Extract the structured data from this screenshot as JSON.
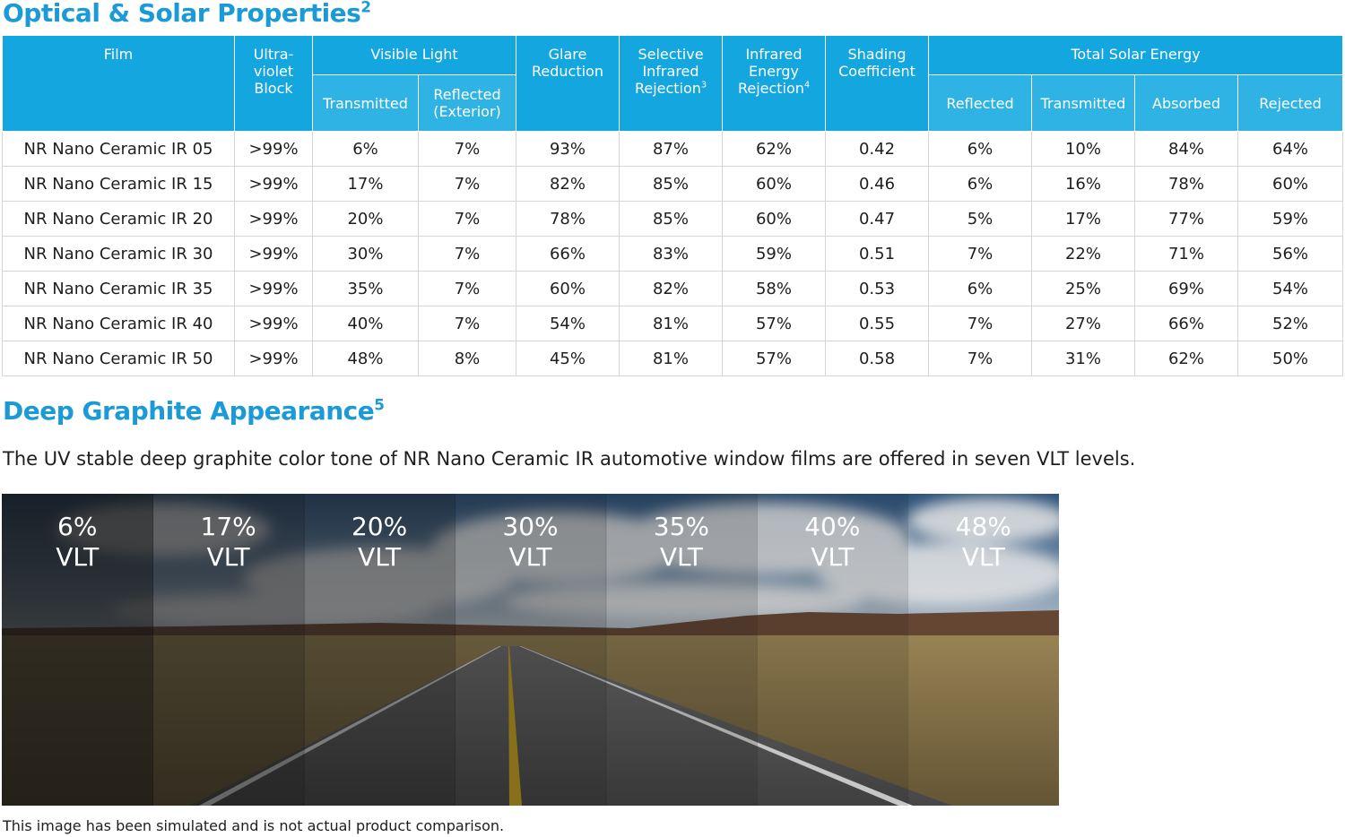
{
  "title": "Optical & Solar Properties",
  "title_note": "2",
  "table": {
    "header_top": [
      {
        "text": "Film"
      },
      {
        "text": "Ultra-violet Block"
      },
      {
        "text": "Visible Light"
      },
      {
        "text": "Glare Reduction"
      },
      {
        "text": "Selective Infrared Rejection",
        "note": "3"
      },
      {
        "text": "Infrared Energy Rejection",
        "note": "4"
      },
      {
        "text": "Shading Coefficient"
      },
      {
        "text": "Total Solar Energy"
      }
    ],
    "header_sub": [
      "Transmitted",
      "Reflected (Exterior)",
      "Reflected",
      "Transmitted",
      "Absorbed",
      "Rejected"
    ],
    "rows": [
      [
        "NR Nano Ceramic IR 05",
        ">99%",
        "6%",
        "7%",
        "93%",
        "87%",
        "62%",
        "0.42",
        "6%",
        "10%",
        "84%",
        "64%"
      ],
      [
        "NR Nano Ceramic IR 15",
        ">99%",
        "17%",
        "7%",
        "82%",
        "85%",
        "60%",
        "0.46",
        "6%",
        "16%",
        "78%",
        "60%"
      ],
      [
        "NR Nano Ceramic IR 20",
        ">99%",
        "20%",
        "7%",
        "78%",
        "85%",
        "60%",
        "0.47",
        "5%",
        "17%",
        "77%",
        "59%"
      ],
      [
        "NR Nano Ceramic IR 30",
        ">99%",
        "30%",
        "7%",
        "66%",
        "83%",
        "59%",
        "0.51",
        "7%",
        "22%",
        "71%",
        "56%"
      ],
      [
        "NR Nano Ceramic IR 35",
        ">99%",
        "35%",
        "7%",
        "60%",
        "82%",
        "58%",
        "0.53",
        "6%",
        "25%",
        "69%",
        "54%"
      ],
      [
        "NR Nano Ceramic IR 40",
        ">99%",
        "40%",
        "7%",
        "54%",
        "81%",
        "57%",
        "0.55",
        "7%",
        "27%",
        "66%",
        "52%"
      ],
      [
        "NR Nano Ceramic IR 50",
        ">99%",
        "48%",
        "8%",
        "45%",
        "81%",
        "57%",
        "0.58",
        "7%",
        "31%",
        "62%",
        "50%"
      ]
    ]
  },
  "appearance": {
    "title": "Deep Graphite Appearance",
    "title_note": "5",
    "text": "The UV stable deep graphite color tone of NR Nano Ceramic IR automotive window films are offered in seven VLT levels.",
    "panels": [
      {
        "value": "6%",
        "label": "VLT"
      },
      {
        "value": "17%",
        "label": "VLT"
      },
      {
        "value": "20%",
        "label": "VLT"
      },
      {
        "value": "30%",
        "label": "VLT"
      },
      {
        "value": "35%",
        "label": "VLT"
      },
      {
        "value": "40%",
        "label": "VLT"
      },
      {
        "value": "48%",
        "label": "VLT"
      }
    ],
    "caption": "This image has been simulated and is not actual product comparison."
  }
}
